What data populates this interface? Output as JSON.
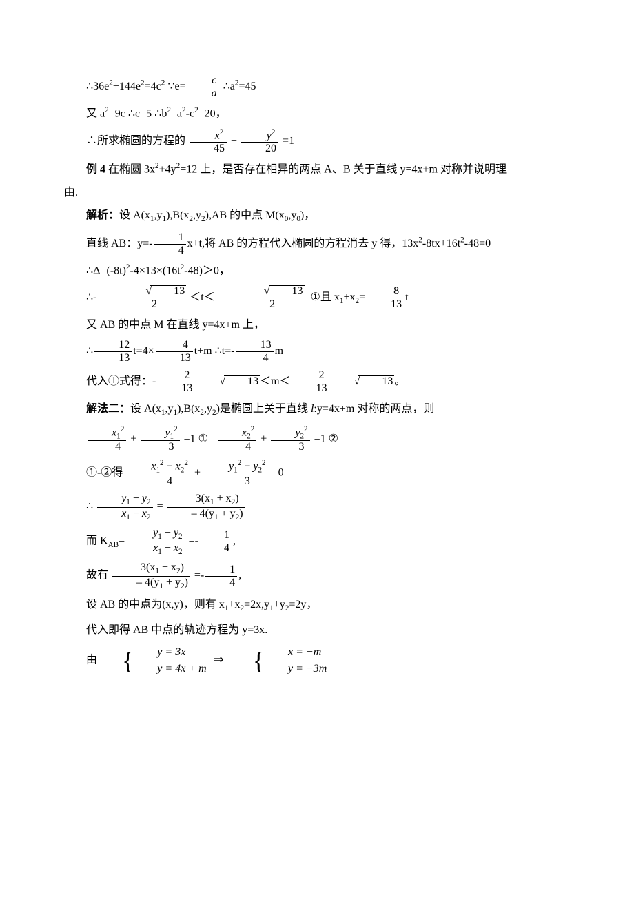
{
  "p1_a": "∴36e",
  "p1_b": "+144e",
  "p1_c": "=4c",
  "p1_d": "   ∵e=",
  "frac_c": "c",
  "frac_a": "a",
  "p1_e": "   ∴a",
  "p1_f": "=45",
  "p2_a": "又 a",
  "p2_b": "=9c   ∴c=5   ∴b",
  "p2_c": "=a",
  "p2_d": "-c",
  "p2_e": "=20，",
  "p3_a": "∴所求椭圆的方程的",
  "fx2": "x",
  "f45": "45",
  "plus": "+",
  "fy2": "y",
  "f20": "20",
  "eq1": "=1",
  "ex4_label": "例 4 ",
  "ex4_a": "在椭圆 3x",
  "ex4_b": "+4y",
  "ex4_c": "=12 上，是否存在相异的两点 A、B 关于直线 y=4x+m 对称并说明理",
  "ex4_d": "由.",
  "jx_label": "解析：",
  "jx_a": "设 A(x",
  "jx_b": ",y",
  "jx_c": "),B(x",
  "jx_d": ",y",
  "jx_e": "),AB 的中点 M(x",
  "jx_f": ",y",
  "jx_g": ")，",
  "ab_a": "直线 AB：y=-",
  "f1": "1",
  "f4": "4",
  "ab_b": "x+t,将 AB 的方程代入椭圆的方程消去 y 得，13x",
  "ab_c": "-8tx+16t",
  "ab_d": "-48=0",
  "delta_a": "∴Δ=(-8t)",
  "delta_b": "-4×13×(16t",
  "delta_c": "-48)＞0，",
  "rng_a": "∴-",
  "sqrt13": "13",
  "f2": "2",
  "rng_b": "＜t＜",
  "rng_c": "      ①且 x",
  "rng_d": "+x",
  "rng_e": "=",
  "f8": "8",
  "f13": "13",
  "rng_f": "t",
  "mid_a": "又 AB 的中点 M 在直线 y=4x+m 上，",
  "t1_a": "∴",
  "f12": "12",
  "t1_b": "t=4×",
  "t1_c": "t+m   ∴t=-",
  "t1_d": "m",
  "sub_a": "代入①式得：-",
  "sub_b": "＜m＜",
  "sub_c": "。",
  "jf2_label": "解法二：",
  "jf2_a": "设 A(x",
  "jf2_b": ",y",
  "jf2_c": "),B(x",
  "jf2_d": ",y",
  "jf2_e": ")是椭圆上关于直线 ",
  "jf2_l": "l",
  "jf2_f": ":y=4x+m 对称的两点，则",
  "eqc1": "=1     ①",
  "eqc2": "=1     ②",
  "f3": "3",
  "diff_a": "①-②得",
  "diff_b": "=0",
  "x12m": "x",
  "y12m": "y",
  "slope_a": "∴",
  "num_y1y2": "y",
  "den_x1x2": "x",
  "eq_text": "=",
  "num_3x": "3(x",
  "num_3x_b": " + x",
  "num_3x_c": ")",
  "den_m4y": "– 4(y",
  "den_m4y_b": " + y",
  "den_m4y_c": ")",
  "kab_a": "而 K",
  "kab_sub": "AB",
  "kab_b": "=",
  "kab_c": "=-",
  "kab_d": ",",
  "gy_a": "故有",
  "gy_b": "=-",
  "gy_c": ",",
  "mid2_a": "设 AB 的中点为(x,y)，则有 x",
  "mid2_b": "+x",
  "mid2_c": "=2x,y",
  "mid2_d": "+y",
  "mid2_e": "=2y，",
  "traj": "代入即得 AB 中点的轨迹方程为 y=3x.",
  "sys_a": "由",
  "sys1": "y = 3x",
  "sys2": "y = 4x + m",
  "imp": "⇒",
  "sys3": "x = −m",
  "sys4": "y = −3m"
}
